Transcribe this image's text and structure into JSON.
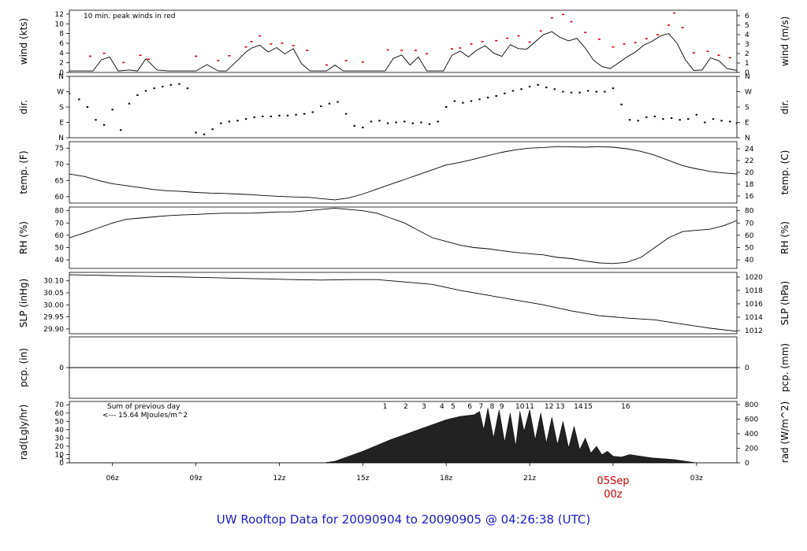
{
  "footer_title": "UW Rooftop Data for 20090904  to  20090905 @ 04:26:38  (UTC)",
  "colors": {
    "trace": "#000000",
    "peak": "#cc0000",
    "precip_line": "#cc0000",
    "hour_labels": "#9900cc",
    "title": "#1a1acc"
  },
  "x_axis": {
    "ticks": [
      {
        "label": "06z",
        "hours": 6
      },
      {
        "label": "09z",
        "hours": 9
      },
      {
        "label": "12z",
        "hours": 12
      },
      {
        "label": "15z",
        "hours": 15
      },
      {
        "label": "18z",
        "hours": 18
      },
      {
        "label": "21z",
        "hours": 21
      },
      {
        "label": "00z",
        "hours": 24
      },
      {
        "label": "03z",
        "hours": 27
      }
    ],
    "date_marker": {
      "date": "05Sep",
      "label": "00z",
      "hours": 24
    },
    "range_hours": [
      4.45,
      28.45
    ]
  },
  "chart_data": [
    {
      "type": "line",
      "name": "wind",
      "ylabel": "wind (kts)",
      "ylabel_right": "wind (m/s)",
      "ylim": [
        0,
        12.8
      ],
      "yticks": [
        0,
        2,
        4,
        6,
        8,
        10,
        12
      ],
      "right_ylim": [
        0,
        6.58
      ],
      "right_yticks": [
        0,
        1,
        2,
        3,
        4,
        5,
        6
      ],
      "annotation": "10 min. peak winds in red",
      "x": [
        4.45,
        5.0,
        5.3,
        5.6,
        5.9,
        6.2,
        6.6,
        6.9,
        7.2,
        7.6,
        8.0,
        8.4,
        8.7,
        9.0,
        9.4,
        9.8,
        10.1,
        10.5,
        10.8,
        11.0,
        11.3,
        11.6,
        11.9,
        12.2,
        12.5,
        12.8,
        13.1,
        13.4,
        13.7,
        14.0,
        14.3,
        14.6,
        14.9,
        15.2,
        15.5,
        15.8,
        16.1,
        16.4,
        16.7,
        17.0,
        17.3,
        17.6,
        17.9,
        18.2,
        18.5,
        18.8,
        19.1,
        19.4,
        19.7,
        20.0,
        20.3,
        20.6,
        20.9,
        21.2,
        21.5,
        21.8,
        22.1,
        22.4,
        22.7,
        23.0,
        23.3,
        23.6,
        23.9,
        24.2,
        24.5,
        24.8,
        25.1,
        25.4,
        25.7,
        26.0,
        26.3,
        26.6,
        26.9,
        27.2,
        27.5,
        27.8,
        28.1,
        28.45
      ],
      "y": [
        0.3,
        0.3,
        0.3,
        2.6,
        3.2,
        0.3,
        0.5,
        0.3,
        2.8,
        0.5,
        0.3,
        0.3,
        0.3,
        0.3,
        1.6,
        0.3,
        0.3,
        2.5,
        4.2,
        5.0,
        5.6,
        4.2,
        5.1,
        3.8,
        4.9,
        1.8,
        0.3,
        0.3,
        0.3,
        1.5,
        0.3,
        0.3,
        0.3,
        0.3,
        0.3,
        0.3,
        2.9,
        3.6,
        1.5,
        3.2,
        0.3,
        0.3,
        0.3,
        3.5,
        4.4,
        3.2,
        4.6,
        5.5,
        4.0,
        3.3,
        5.7,
        4.9,
        4.8,
        6.3,
        7.8,
        8.4,
        7.2,
        6.5,
        7.0,
        5.0,
        2.5,
        1.2,
        0.8,
        2.0,
        3.2,
        4.2,
        5.6,
        6.4,
        7.5,
        8.0,
        6.0,
        2.6,
        0.4,
        0.5,
        3.0,
        2.4,
        0.8,
        0.4
      ],
      "peaks": [
        {
          "x": 5.2,
          "y": 3.3
        },
        {
          "x": 5.7,
          "y": 3.9
        },
        {
          "x": 6.4,
          "y": 2.0
        },
        {
          "x": 7.0,
          "y": 3.5
        },
        {
          "x": 7.3,
          "y": 2.7
        },
        {
          "x": 9.0,
          "y": 3.3
        },
        {
          "x": 9.8,
          "y": 2.4
        },
        {
          "x": 10.2,
          "y": 3.4
        },
        {
          "x": 10.8,
          "y": 5.2
        },
        {
          "x": 11.0,
          "y": 6.3
        },
        {
          "x": 11.3,
          "y": 7.5
        },
        {
          "x": 11.7,
          "y": 5.8
        },
        {
          "x": 12.1,
          "y": 6.0
        },
        {
          "x": 12.5,
          "y": 5.5
        },
        {
          "x": 13.0,
          "y": 4.5
        },
        {
          "x": 13.7,
          "y": 1.5
        },
        {
          "x": 14.4,
          "y": 2.4
        },
        {
          "x": 15.0,
          "y": 2.1
        },
        {
          "x": 15.9,
          "y": 4.6
        },
        {
          "x": 16.4,
          "y": 4.5
        },
        {
          "x": 16.9,
          "y": 4.5
        },
        {
          "x": 17.3,
          "y": 3.8
        },
        {
          "x": 18.2,
          "y": 4.8
        },
        {
          "x": 18.5,
          "y": 5.0
        },
        {
          "x": 18.9,
          "y": 5.8
        },
        {
          "x": 19.3,
          "y": 6.3
        },
        {
          "x": 19.8,
          "y": 6.5
        },
        {
          "x": 20.2,
          "y": 7.0
        },
        {
          "x": 20.6,
          "y": 7.5
        },
        {
          "x": 21.0,
          "y": 6.2
        },
        {
          "x": 21.4,
          "y": 8.5
        },
        {
          "x": 21.8,
          "y": 11.2
        },
        {
          "x": 22.2,
          "y": 11.9
        },
        {
          "x": 22.5,
          "y": 10.4
        },
        {
          "x": 23.0,
          "y": 8.2
        },
        {
          "x": 23.5,
          "y": 6.8
        },
        {
          "x": 24.0,
          "y": 5.2
        },
        {
          "x": 24.4,
          "y": 5.8
        },
        {
          "x": 24.8,
          "y": 6.1
        },
        {
          "x": 25.2,
          "y": 6.9
        },
        {
          "x": 25.6,
          "y": 7.7
        },
        {
          "x": 26.0,
          "y": 9.7
        },
        {
          "x": 26.2,
          "y": 12.2
        },
        {
          "x": 26.5,
          "y": 9.2
        },
        {
          "x": 26.9,
          "y": 4.0
        },
        {
          "x": 27.4,
          "y": 4.3
        },
        {
          "x": 27.8,
          "y": 3.5
        },
        {
          "x": 28.2,
          "y": 3.0
        }
      ]
    },
    {
      "type": "scatter",
      "name": "direction",
      "ylabel": "dir.",
      "ylabel_right": "dir.",
      "ylim": [
        0,
        360
      ],
      "yticks": [
        0,
        90,
        180,
        270,
        360
      ],
      "ytick_labels": [
        "N",
        "E",
        "S",
        "W",
        "N"
      ],
      "x": [
        4.45,
        4.8,
        5.1,
        5.4,
        5.7,
        6.0,
        6.3,
        6.6,
        6.9,
        7.2,
        7.5,
        7.8,
        8.1,
        8.4,
        8.7,
        9.0,
        9.3,
        9.6,
        9.9,
        10.2,
        10.5,
        10.8,
        11.1,
        11.4,
        11.7,
        12.0,
        12.3,
        12.6,
        12.9,
        13.2,
        13.5,
        13.8,
        14.1,
        14.4,
        14.7,
        15.0,
        15.3,
        15.6,
        15.9,
        16.2,
        16.5,
        16.8,
        17.1,
        17.4,
        17.7,
        18.0,
        18.3,
        18.6,
        18.9,
        19.2,
        19.5,
        19.8,
        20.1,
        20.4,
        20.7,
        21.0,
        21.3,
        21.6,
        21.9,
        22.2,
        22.5,
        22.8,
        23.1,
        23.4,
        23.7,
        24.0,
        24.3,
        24.6,
        24.9,
        25.2,
        25.5,
        25.8,
        26.1,
        26.4,
        26.7,
        27.0,
        27.3,
        27.6,
        27.9,
        28.2,
        28.45
      ],
      "y": [
        260,
        225,
        180,
        105,
        75,
        165,
        45,
        200,
        250,
        275,
        290,
        300,
        310,
        315,
        290,
        30,
        20,
        50,
        85,
        95,
        100,
        110,
        120,
        125,
        125,
        130,
        130,
        135,
        140,
        150,
        185,
        200,
        210,
        140,
        70,
        60,
        95,
        100,
        85,
        90,
        95,
        85,
        90,
        80,
        95,
        180,
        215,
        205,
        215,
        225,
        235,
        245,
        260,
        275,
        285,
        300,
        310,
        295,
        285,
        270,
        265,
        265,
        275,
        270,
        270,
        290,
        195,
        105,
        100,
        120,
        125,
        110,
        115,
        105,
        110,
        135,
        90,
        110,
        100,
        95,
        85
      ]
    },
    {
      "type": "line",
      "name": "temperature",
      "ylabel": "temp. (F)",
      "ylabel_right": "temp. (C)",
      "ylim": [
        58,
        77
      ],
      "yticks": [
        60,
        65,
        70,
        75
      ],
      "right_yticks": [
        16,
        18,
        20,
        22,
        24
      ],
      "x": [
        4.45,
        5.0,
        5.5,
        6.0,
        6.5,
        7.0,
        7.5,
        8.0,
        8.5,
        9.0,
        9.5,
        10.0,
        10.5,
        11.0,
        11.5,
        12.0,
        12.5,
        13.0,
        13.5,
        14.0,
        14.5,
        15.0,
        15.5,
        16.0,
        16.5,
        17.0,
        17.5,
        18.0,
        18.5,
        19.0,
        19.5,
        20.0,
        20.5,
        21.0,
        21.5,
        22.0,
        22.5,
        23.0,
        23.5,
        24.0,
        24.5,
        25.0,
        25.5,
        26.0,
        26.5,
        27.0,
        27.5,
        28.0,
        28.45
      ],
      "y": [
        67.0,
        66.2,
        65.0,
        64.0,
        63.4,
        62.8,
        62.2,
        61.8,
        61.6,
        61.3,
        61.1,
        61.0,
        60.8,
        60.6,
        60.3,
        60.1,
        59.9,
        59.8,
        59.4,
        59.0,
        59.6,
        60.8,
        62.3,
        63.8,
        65.3,
        66.8,
        68.3,
        69.8,
        70.6,
        71.6,
        72.7,
        73.7,
        74.5,
        75.0,
        75.2,
        75.5,
        75.4,
        75.3,
        75.5,
        75.3,
        74.8,
        74.0,
        72.8,
        71.2,
        69.6,
        68.6,
        67.8,
        67.3,
        67.0
      ]
    },
    {
      "type": "line",
      "name": "relative_humidity",
      "ylabel": "RH (%)",
      "ylabel_right": "RH (%)",
      "ylim": [
        33,
        83
      ],
      "yticks": [
        40,
        50,
        60,
        70,
        80
      ],
      "right_yticks": [
        40,
        50,
        60,
        70,
        80
      ],
      "x": [
        4.45,
        5.0,
        5.5,
        6.0,
        6.5,
        7.0,
        7.5,
        8.0,
        8.5,
        9.0,
        9.5,
        10.0,
        10.5,
        11.0,
        11.5,
        12.0,
        12.5,
        13.0,
        13.5,
        14.0,
        14.5,
        15.0,
        15.5,
        16.0,
        16.5,
        17.0,
        17.5,
        18.0,
        18.5,
        19.0,
        19.5,
        20.0,
        20.5,
        21.0,
        21.5,
        22.0,
        22.5,
        23.0,
        23.5,
        24.0,
        24.5,
        25.0,
        25.5,
        26.0,
        26.5,
        27.0,
        27.5,
        28.0,
        28.45
      ],
      "y": [
        58.0,
        62.0,
        66.0,
        70.0,
        73.0,
        74.0,
        75.0,
        76.0,
        76.5,
        77.0,
        77.5,
        78.0,
        78.0,
        78.0,
        78.5,
        79.0,
        79.0,
        80.0,
        81.0,
        82.0,
        81.0,
        80.0,
        78.0,
        74.0,
        70.0,
        64.0,
        58.0,
        55.0,
        52.0,
        50.0,
        49.0,
        47.5,
        46.0,
        45.0,
        44.0,
        42.0,
        41.0,
        39.0,
        37.5,
        37.0,
        38.0,
        42.0,
        50.0,
        58.0,
        63.0,
        64.0,
        65.0,
        68.0,
        72.0
      ]
    },
    {
      "type": "line",
      "name": "sea_level_pressure",
      "ylabel": "SLP (inHg)",
      "ylabel_right": "SLP (hPa)",
      "ylim": [
        29.88,
        30.135
      ],
      "yticks": [
        29.9,
        29.95,
        30.0,
        30.05,
        30.1
      ],
      "ytick_labels": [
        "29.90",
        "29.95",
        "30.00",
        "30.05",
        "30.10"
      ],
      "right_yticks": [
        1012,
        1014,
        1016,
        1018,
        1020
      ],
      "x": [
        4.45,
        5.5,
        6.5,
        7.5,
        8.5,
        9.5,
        10.5,
        11.5,
        12.5,
        13.5,
        14.5,
        15.5,
        16.5,
        17.5,
        18.5,
        19.5,
        20.5,
        21.5,
        22.5,
        23.5,
        24.5,
        25.5,
        26.5,
        27.5,
        28.45
      ],
      "y": [
        30.125,
        30.123,
        30.12,
        30.118,
        30.116,
        30.113,
        30.11,
        30.108,
        30.105,
        30.103,
        30.105,
        30.105,
        30.095,
        30.085,
        30.06,
        30.04,
        30.02,
        30.0,
        29.975,
        29.955,
        29.945,
        29.938,
        29.92,
        29.903,
        29.89
      ]
    },
    {
      "type": "line",
      "name": "precipitation",
      "ylabel": "pcp. (in)",
      "ylabel_right": "pcp. (mm)",
      "ylim": [
        -1,
        1
      ],
      "yticks": [
        0
      ],
      "right_yticks": [
        0
      ],
      "x": [
        4.45,
        28.45
      ],
      "y": [
        0,
        0
      ]
    },
    {
      "type": "area",
      "name": "solar_radiation",
      "ylabel": "rad(Lgly/hr)",
      "ylabel_right": "rad (W/m^2)",
      "ylim": [
        0,
        74
      ],
      "yticks": [
        0,
        5,
        10,
        20,
        30,
        40,
        50,
        60,
        70
      ],
      "right_yticks": [
        0,
        200,
        400,
        600,
        800
      ],
      "annotation_lines": [
        "Sum of previous day",
        "<--- 15.64 MJoules/m^2"
      ],
      "x": [
        4.45,
        13.6,
        14.0,
        14.5,
        15.0,
        15.5,
        16.0,
        16.5,
        17.0,
        17.5,
        18.0,
        18.5,
        19.0,
        19.2,
        19.35,
        19.5,
        19.7,
        19.9,
        20.1,
        20.3,
        20.5,
        20.65,
        20.8,
        21.0,
        21.2,
        21.4,
        21.6,
        21.8,
        22.0,
        22.2,
        22.4,
        22.6,
        22.8,
        23.0,
        23.2,
        23.4,
        23.6,
        23.8,
        24.0,
        24.3,
        24.6,
        25.0,
        25.4,
        25.8,
        26.2,
        26.6,
        27.0,
        28.45
      ],
      "y": [
        0,
        0,
        2,
        8,
        14,
        21,
        28,
        34,
        40,
        46,
        52,
        56,
        58,
        62,
        40,
        66,
        30,
        64,
        25,
        60,
        20,
        62,
        38,
        64,
        28,
        60,
        24,
        55,
        22,
        50,
        18,
        44,
        16,
        30,
        12,
        20,
        10,
        14,
        8,
        7,
        10,
        8,
        6,
        5,
        4,
        2,
        0,
        0
      ],
      "hour_labels": [
        {
          "label": "1",
          "hours": 15.8
        },
        {
          "label": "2",
          "hours": 16.55
        },
        {
          "label": "3",
          "hours": 17.2
        },
        {
          "label": "4",
          "hours": 17.85
        },
        {
          "label": "5",
          "hours": 18.25
        },
        {
          "label": "6",
          "hours": 18.85
        },
        {
          "label": "7",
          "hours": 19.25
        },
        {
          "label": "8",
          "hours": 19.65
        },
        {
          "label": "9",
          "hours": 20.0
        },
        {
          "label": "10",
          "hours": 20.65
        },
        {
          "label": "11",
          "hours": 21.0
        },
        {
          "label": "12",
          "hours": 21.7
        },
        {
          "label": "13",
          "hours": 22.1
        },
        {
          "label": "14",
          "hours": 22.75
        },
        {
          "label": "15",
          "hours": 23.1
        },
        {
          "label": "16",
          "hours": 24.45
        }
      ]
    }
  ]
}
